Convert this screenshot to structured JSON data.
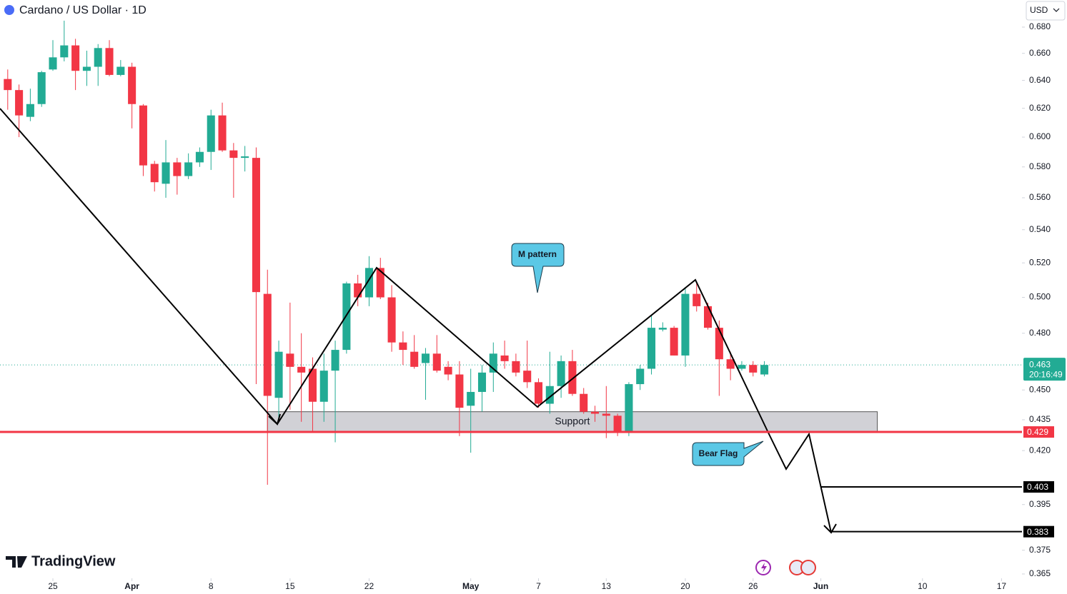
{
  "chart_data": {
    "type": "candlestick",
    "title": "Cardano / US Dollar · 1D",
    "currency": "USD",
    "log_scale": true,
    "up_color": "#22ab94",
    "down_color": "#f23645",
    "x": [
      "03-21",
      "03-22",
      "03-23",
      "03-24",
      "03-25",
      "03-26",
      "03-27",
      "03-28",
      "03-29",
      "03-30",
      "03-31",
      "04-01",
      "04-02",
      "04-03",
      "04-04",
      "04-05",
      "04-06",
      "04-07",
      "04-08",
      "04-09",
      "04-10",
      "04-11",
      "04-12",
      "04-13",
      "04-14",
      "04-15",
      "04-16",
      "04-17",
      "04-18",
      "04-19",
      "04-20",
      "04-21",
      "04-22",
      "04-23",
      "04-24",
      "04-25",
      "04-26",
      "04-27",
      "04-28",
      "04-29",
      "04-30",
      "05-01",
      "05-02",
      "05-03",
      "05-04",
      "05-05",
      "05-06",
      "05-07",
      "05-08",
      "05-09",
      "05-10",
      "05-11",
      "05-12",
      "05-13",
      "05-14",
      "05-15",
      "05-16",
      "05-17",
      "05-18",
      "05-19",
      "05-20",
      "05-21",
      "05-22",
      "05-23",
      "05-24",
      "05-25",
      "05-26",
      "05-27"
    ],
    "open": [
      0.641,
      0.633,
      0.614,
      0.623,
      0.648,
      0.657,
      0.666,
      0.647,
      0.65,
      0.664,
      0.644,
      0.65,
      0.622,
      0.582,
      0.569,
      0.583,
      0.574,
      0.583,
      0.59,
      0.615,
      0.591,
      0.586,
      0.586,
      0.502,
      0.446,
      0.469,
      0.462,
      0.461,
      0.444,
      0.46,
      0.471,
      0.508,
      0.5,
      0.517,
      0.5,
      0.475,
      0.47,
      0.464,
      0.469,
      0.462,
      0.458,
      0.442,
      0.449,
      0.459,
      0.468,
      0.465,
      0.46,
      0.454,
      0.443,
      0.452,
      0.465,
      0.448,
      0.439,
      0.438,
      0.437,
      0.429,
      0.453,
      0.461,
      0.482,
      0.483,
      0.468,
      0.502,
      0.495,
      0.483,
      0.466,
      0.461,
      0.463,
      0.458
    ],
    "high": [
      0.648,
      0.637,
      0.634,
      0.647,
      0.67,
      0.685,
      0.671,
      0.662,
      0.667,
      0.67,
      0.655,
      0.653,
      0.623,
      0.584,
      0.598,
      0.586,
      0.589,
      0.593,
      0.619,
      0.624,
      0.596,
      0.594,
      0.593,
      0.516,
      0.476,
      0.497,
      0.48,
      0.467,
      0.469,
      0.476,
      0.509,
      0.513,
      0.524,
      0.523,
      0.507,
      0.481,
      0.479,
      0.472,
      0.479,
      0.465,
      0.465,
      0.461,
      0.463,
      0.475,
      0.476,
      0.469,
      0.476,
      0.456,
      0.47,
      0.468,
      0.471,
      0.451,
      0.442,
      0.452,
      0.438,
      0.454,
      0.463,
      0.49,
      0.486,
      0.484,
      0.505,
      0.509,
      0.497,
      0.487,
      0.47,
      0.465,
      0.465,
      0.465
    ],
    "low": [
      0.619,
      0.6,
      0.611,
      0.621,
      0.647,
      0.654,
      0.633,
      0.636,
      0.636,
      0.643,
      0.643,
      0.606,
      0.574,
      0.564,
      0.56,
      0.562,
      0.572,
      0.58,
      0.578,
      0.59,
      0.56,
      0.577,
      0.453,
      0.404,
      0.434,
      0.44,
      0.434,
      0.429,
      0.434,
      0.424,
      0.469,
      0.495,
      0.495,
      0.499,
      0.47,
      0.463,
      0.461,
      0.445,
      0.459,
      0.455,
      0.427,
      0.419,
      0.439,
      0.449,
      0.461,
      0.457,
      0.451,
      0.441,
      0.438,
      0.446,
      0.447,
      0.438,
      0.434,
      0.426,
      0.427,
      0.427,
      0.45,
      0.458,
      0.481,
      0.468,
      0.462,
      0.492,
      0.482,
      0.447,
      0.455,
      0.46,
      0.457,
      0.457
    ],
    "close": [
      0.633,
      0.615,
      0.623,
      0.646,
      0.657,
      0.666,
      0.647,
      0.65,
      0.664,
      0.644,
      0.65,
      0.623,
      0.581,
      0.57,
      0.583,
      0.574,
      0.583,
      0.59,
      0.615,
      0.591,
      0.586,
      0.587,
      0.503,
      0.447,
      0.47,
      0.462,
      0.459,
      0.444,
      0.46,
      0.471,
      0.508,
      0.5,
      0.517,
      0.5,
      0.475,
      0.471,
      0.462,
      0.469,
      0.46,
      0.458,
      0.441,
      0.449,
      0.459,
      0.469,
      0.465,
      0.459,
      0.454,
      0.443,
      0.452,
      0.465,
      0.448,
      0.439,
      0.438,
      0.437,
      0.429,
      0.453,
      0.461,
      0.483,
      0.483,
      0.468,
      0.502,
      0.495,
      0.483,
      0.466,
      0.461,
      0.463,
      0.459,
      0.463
    ],
    "ylim": [
      0.3638,
      0.7013
    ],
    "yticks": [
      {
        "value": 0.68,
        "label": "0.680"
      },
      {
        "value": 0.66,
        "label": "0.660"
      },
      {
        "value": 0.64,
        "label": "0.640"
      },
      {
        "value": 0.62,
        "label": "0.620"
      },
      {
        "value": 0.6,
        "label": "0.600"
      },
      {
        "value": 0.58,
        "label": "0.580"
      },
      {
        "value": 0.56,
        "label": "0.560"
      },
      {
        "value": 0.54,
        "label": "0.540"
      },
      {
        "value": 0.52,
        "label": "0.520"
      },
      {
        "value": 0.5,
        "label": "0.500"
      },
      {
        "value": 0.48,
        "label": "0.480"
      },
      {
        "value": 0.45,
        "label": "0.450"
      },
      0.435,
      {
        "value": 0.42,
        "label": "0.420"
      },
      0.395,
      0.375,
      0.365
    ],
    "xlim": [
      "03-20",
      "06-19"
    ],
    "xticks": [
      {
        "value": "03-25",
        "label": "25"
      },
      {
        "value": "04-01",
        "label": "Apr"
      },
      {
        "value": "04-08",
        "label": "8"
      },
      {
        "value": "04-15",
        "label": "15"
      },
      {
        "value": "04-22",
        "label": "22"
      },
      {
        "value": "05-01",
        "label": "May"
      },
      {
        "value": "05-07",
        "label": "7"
      },
      {
        "value": "05-13",
        "label": "13"
      },
      {
        "value": "05-20",
        "label": "20"
      },
      {
        "value": "05-26",
        "label": "26"
      },
      {
        "value": "06-01",
        "label": "Jun"
      },
      {
        "value": "06-10",
        "label": "10"
      },
      {
        "value": "06-17",
        "label": "17"
      }
    ],
    "last_price": {
      "value": 0.463,
      "countdown": "20:16:49",
      "color": "#22ab94"
    },
    "levels": [
      {
        "value": 0.429,
        "color": "#f23645",
        "from": "03-20"
      },
      {
        "value": 0.403,
        "color": "#000000",
        "from": "06-01"
      },
      {
        "value": 0.383,
        "color": "#000000",
        "from": "06-02"
      }
    ],
    "support": {
      "label": "Support",
      "from": "04-13",
      "to": "06-06",
      "low": 0.429,
      "high": 0.439
    },
    "annotations": [
      "M pattern",
      "Bear Flag"
    ],
    "brand": "TradingView"
  }
}
